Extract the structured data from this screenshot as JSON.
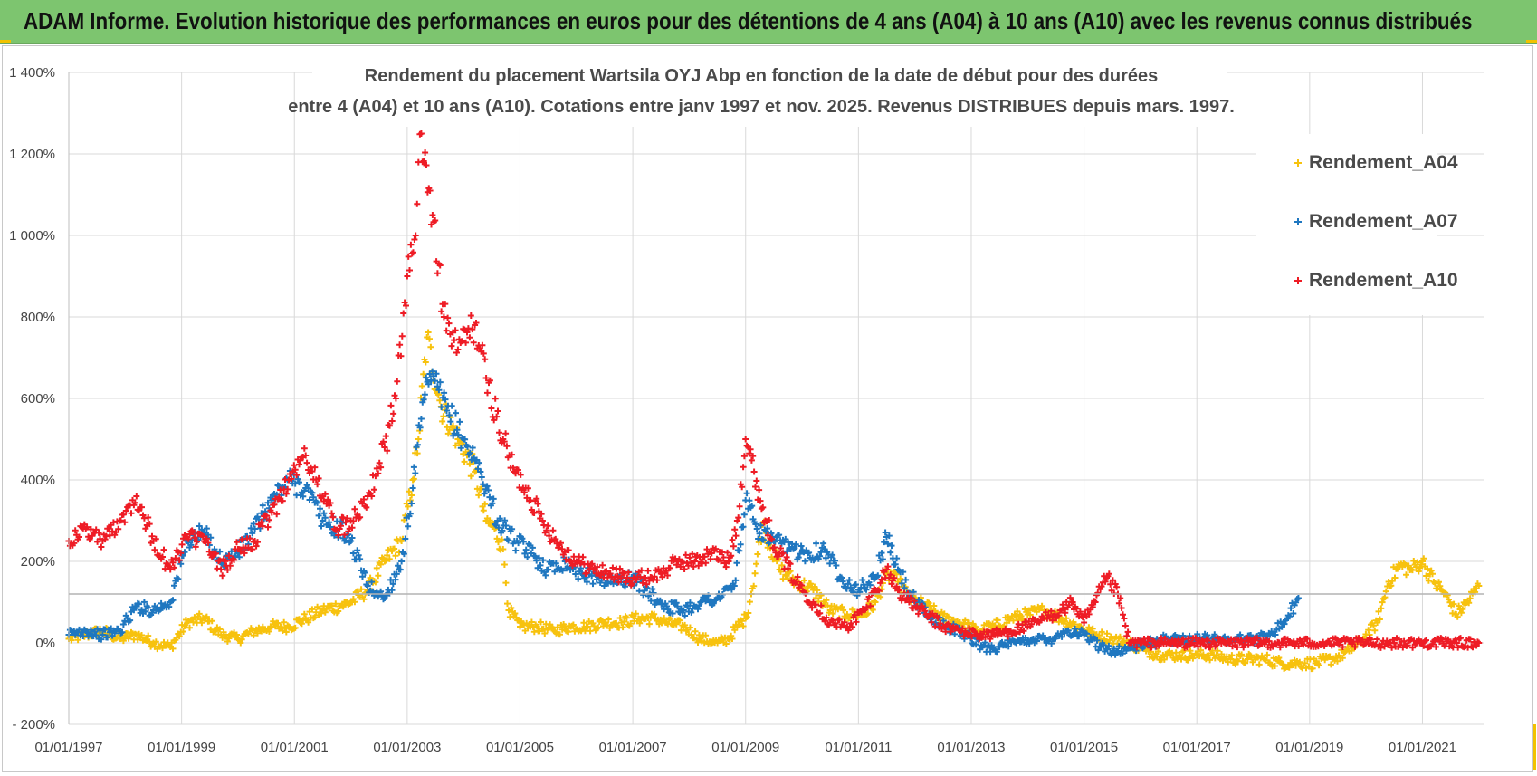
{
  "banner": {
    "text": "ADAM Informe. Evolution historique des performances en euros pour des détentions de 4 ans (A04) à 10 ans (A10) avec les revenus connus distribués"
  },
  "colors": {
    "banner": "#7dc56f",
    "A04": "#f7c20e",
    "A07": "#1f77c0",
    "A10": "#ee1c25",
    "grid": "#d9d9d9"
  },
  "chart_data": {
    "type": "scatter",
    "title": [
      "Rendement du placement Wartsila OYJ Abp en fonction de la date de début pour des durées",
      "entre 4 (A04) et 10 ans (A10). Cotations entre janv 1997 et nov. 2025. Revenus DISTRIBUES depuis mars. 1997."
    ],
    "xlabel": "",
    "ylabel": "",
    "x_unit": "year",
    "xlim": [
      1997.0,
      2022.1
    ],
    "ylim": [
      -200,
      1400
    ],
    "y_ticks": [
      -200,
      0,
      200,
      400,
      600,
      800,
      1000,
      1200,
      1400
    ],
    "y_tick_labels": [
      "- 200%",
      "0%",
      "200%",
      "400%",
      "600%",
      "800%",
      "1 000%",
      "1 200%",
      "1 400%"
    ],
    "x_ticks": [
      1997,
      1999,
      2001,
      2003,
      2005,
      2007,
      2009,
      2011,
      2013,
      2015,
      2017,
      2019,
      2021
    ],
    "x_tick_labels": [
      "01/01/1997",
      "01/01/1999",
      "01/01/2001",
      "01/01/2003",
      "01/01/2005",
      "01/01/2007",
      "01/01/2009",
      "01/01/2011",
      "01/01/2013",
      "01/01/2015",
      "01/01/2017",
      "01/01/2019",
      "01/01/2021"
    ],
    "reference_line_y": 120,
    "legend_position": "top-right",
    "series": [
      {
        "name": "Rendement_A04",
        "x": [
          1997.0,
          1997.3,
          1997.6,
          1997.9,
          1998.2,
          1998.5,
          1998.8,
          1999.1,
          1999.4,
          1999.7,
          2000.0,
          2000.3,
          2000.6,
          2000.9,
          2001.2,
          2001.5,
          2001.8,
          2002.0,
          2002.3,
          2002.6,
          2002.9,
          2003.1,
          2003.2,
          2003.35,
          2003.6,
          2003.9,
          2004.2,
          2004.4,
          2004.55,
          2004.7,
          2004.8,
          2005.0,
          2005.3,
          2005.6,
          2005.9,
          2006.2,
          2006.5,
          2006.8,
          2007.1,
          2007.4,
          2007.6,
          2007.9,
          2008.2,
          2008.5,
          2008.7,
          2008.85,
          2009.0,
          2009.1,
          2009.3,
          2009.6,
          2009.9,
          2010.2,
          2010.5,
          2010.8,
          2011.1,
          2011.3,
          2011.5,
          2011.7,
          2011.9,
          2012.2,
          2012.5,
          2012.8,
          2013.1,
          2013.4,
          2013.7,
          2014.0,
          2014.3,
          2014.6,
          2014.9,
          2015.2,
          2015.5,
          2015.8,
          2016.1,
          2016.4,
          2016.7,
          2017.0,
          2017.3,
          2017.6,
          2017.9,
          2018.2,
          2018.5,
          2018.8,
          2019.1,
          2019.4,
          2019.7,
          2019.95,
          2020.2,
          2020.4,
          2020.6,
          2020.8,
          2021.0,
          2021.2,
          2021.4,
          2021.6,
          2021.8,
          2022.0
        ],
        "y": [
          10,
          20,
          30,
          10,
          20,
          0,
          -10,
          50,
          60,
          20,
          10,
          30,
          40,
          40,
          60,
          80,
          90,
          100,
          130,
          200,
          250,
          400,
          500,
          750,
          580,
          500,
          420,
          300,
          280,
          230,
          80,
          40,
          40,
          30,
          40,
          40,
          50,
          50,
          60,
          60,
          50,
          40,
          10,
          0,
          10,
          40,
          60,
          120,
          290,
          180,
          150,
          130,
          80,
          70,
          70,
          100,
          170,
          150,
          110,
          90,
          60,
          50,
          30,
          40,
          60,
          70,
          80,
          60,
          40,
          20,
          10,
          0,
          -20,
          -30,
          -30,
          -30,
          -30,
          -40,
          -40,
          -40,
          -50,
          -50,
          -50,
          -40,
          -20,
          10,
          50,
          150,
          190,
          180,
          200,
          150,
          120,
          70,
          100,
          140
        ]
      },
      {
        "name": "Rendement_A07",
        "x": [
          1997.0,
          1997.3,
          1997.6,
          1997.9,
          1998.2,
          1998.5,
          1998.8,
          1999.1,
          1999.4,
          1999.7,
          2000.0,
          2000.3,
          2000.6,
          2000.9,
          2001.2,
          2001.5,
          2001.8,
          2002.0,
          2002.3,
          2002.6,
          2002.9,
          2003.1,
          2003.25,
          2003.4,
          2003.7,
          2004.0,
          2004.3,
          2004.6,
          2004.9,
          2005.2,
          2005.5,
          2005.8,
          2006.1,
          2006.4,
          2006.7,
          2007.0,
          2007.3,
          2007.6,
          2007.9,
          2008.2,
          2008.5,
          2008.8,
          2009.0,
          2009.2,
          2009.5,
          2009.8,
          2010.1,
          2010.4,
          2010.7,
          2011.0,
          2011.3,
          2011.5,
          2011.7,
          2012.0,
          2012.3,
          2012.6,
          2012.9,
          2013.2,
          2013.5,
          2013.8,
          2014.1,
          2014.4,
          2014.7,
          2015.0,
          2015.3,
          2015.6,
          2015.9,
          2016.2,
          2016.5,
          2016.8,
          2017.1,
          2017.4,
          2017.7,
          2018.0,
          2018.3,
          2018.6,
          2018.8
        ],
        "y": [
          20,
          30,
          20,
          30,
          90,
          80,
          100,
          250,
          270,
          200,
          220,
          280,
          350,
          400,
          380,
          300,
          280,
          250,
          140,
          110,
          200,
          380,
          550,
          660,
          570,
          500,
          420,
          300,
          250,
          220,
          180,
          200,
          170,
          160,
          150,
          160,
          120,
          90,
          80,
          100,
          110,
          140,
          350,
          280,
          250,
          230,
          220,
          230,
          160,
          130,
          160,
          260,
          180,
          100,
          60,
          40,
          20,
          -10,
          -10,
          0,
          10,
          10,
          30,
          20,
          -10,
          -20,
          -10,
          0,
          10,
          10,
          10,
          10,
          10,
          10,
          20,
          60,
          110
        ]
      },
      {
        "name": "Rendement_A10",
        "x": [
          1997.0,
          1997.3,
          1997.6,
          1997.9,
          1998.2,
          1998.5,
          1998.8,
          1999.1,
          1999.4,
          1999.7,
          2000.0,
          2000.3,
          2000.6,
          2000.9,
          2001.2,
          2001.5,
          2001.8,
          2002.0,
          2002.3,
          2002.6,
          2002.8,
          2003.0,
          2003.15,
          2003.25,
          2003.45,
          2003.65,
          2003.9,
          2004.2,
          2004.4,
          2004.7,
          2004.9,
          2005.1,
          2005.4,
          2005.7,
          2006.0,
          2006.3,
          2006.6,
          2006.9,
          2007.2,
          2007.5,
          2007.8,
          2008.1,
          2008.4,
          2008.7,
          2008.85,
          2009.0,
          2009.15,
          2009.35,
          2009.6,
          2009.9,
          2010.2,
          2010.5,
          2010.8,
          2011.1,
          2011.3,
          2011.5,
          2011.7,
          2011.9,
          2012.2,
          2012.5,
          2012.8,
          2013.1,
          2013.4,
          2013.7,
          2014.0,
          2014.3,
          2014.6,
          2014.8,
          2015.0,
          2015.2,
          2015.4,
          2015.6,
          2015.8,
          2016.0,
          2016.5,
          2017.0,
          2017.5,
          2018.0,
          2018.5,
          2019.0,
          2019.5,
          2020.0,
          2020.5,
          2021.0,
          2021.5,
          2022.0
        ],
        "y": [
          250,
          280,
          250,
          300,
          360,
          250,
          180,
          260,
          250,
          180,
          230,
          250,
          320,
          400,
          460,
          360,
          280,
          300,
          360,
          480,
          600,
          900,
          1000,
          1250,
          1050,
          800,
          720,
          780,
          650,
          500,
          420,
          380,
          300,
          240,
          200,
          180,
          170,
          160,
          160,
          170,
          200,
          200,
          220,
          200,
          300,
          500,
          420,
          300,
          220,
          150,
          100,
          50,
          40,
          80,
          130,
          180,
          130,
          100,
          70,
          40,
          30,
          20,
          20,
          30,
          40,
          60,
          80,
          100,
          50,
          100,
          160,
          120,
          0,
          0,
          0,
          0,
          0,
          0,
          0,
          0,
          0,
          0,
          0,
          0,
          0,
          0
        ]
      }
    ]
  }
}
